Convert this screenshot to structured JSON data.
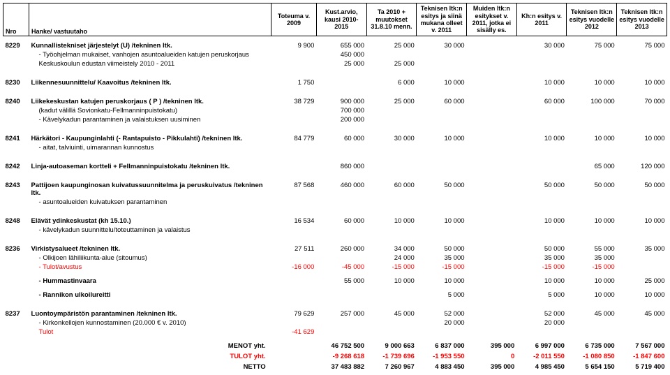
{
  "colors": {
    "neg": "#ff0000",
    "text": "#000000",
    "border": "#000000",
    "bg": "#ffffff"
  },
  "headers": {
    "nro": "Nro",
    "hanke": "Hanke/ vastuutaho",
    "h0": "Toteuma v. 2009",
    "h1": "Kust.arvio, kausi 2010-2015",
    "h2": "Ta 2010 + muutokset 31.8.10 menn.",
    "h3": "Teknisen ltk:n esitys ja siinä mukana olleet v. 2011",
    "h4": "Muiden ltk:n esitykset v. 2011, jotka ei sisälly es.",
    "h5": "Kh:n esitys v. 2011",
    "h6": "Teknisen ltk:n esitys vuodelle 2012",
    "h7": "Teknisen ltk:n esitys vuodelle 2013"
  },
  "rows": [
    {
      "type": "section",
      "nro": "8229",
      "label": "Kunnallistekniset järjestelyt (U) /tekninen ltk.",
      "v": [
        "9 900",
        "655 000",
        "25 000",
        "30 000",
        "",
        "30 000",
        "75 000",
        "75 000"
      ]
    },
    {
      "type": "sub",
      "label": "- Työohjelman mukaiset, vanhojen asuntoalueiden katujen peruskorjaus",
      "v": [
        "",
        "450 000",
        "",
        "",
        "",
        "",
        "",
        ""
      ]
    },
    {
      "type": "sub last",
      "label": "Keskuskoulun edustan viimeistely 2010 - 2011",
      "v": [
        "",
        "25 000",
        "25 000",
        "",
        "",
        "",
        "",
        ""
      ]
    },
    {
      "type": "section last",
      "nro": "8230",
      "label": "Liikennesuunnittelu/ Kaavoitus /tekninen ltk.",
      "v": [
        "1 750",
        "",
        "6 000",
        "10 000",
        "",
        "10 000",
        "10 000",
        "10 000"
      ]
    },
    {
      "type": "section",
      "nro": "8240",
      "label": "Liikekeskustan katujen peruskorjaus ( P ) /tekninen ltk.",
      "v": [
        "38 729",
        "900 000",
        "25 000",
        "60 000",
        "",
        "60 000",
        "100 000",
        "70 000"
      ]
    },
    {
      "type": "sub",
      "label": "(kadut välillä Sovionkatu-Fellmanninpuistokatu)",
      "v": [
        "",
        "700 000",
        "",
        "",
        "",
        "",
        "",
        ""
      ]
    },
    {
      "type": "sub last",
      "label": "- Kävelykadun parantaminen ja valaistuksen uusiminen",
      "v": [
        "",
        "200 000",
        "",
        "",
        "",
        "",
        "",
        ""
      ]
    },
    {
      "type": "section",
      "nro": "8241",
      "label": "Härkätori - Kaupunginlahti (- Rantapuisto - Pikkulahti) /tekninen ltk.",
      "v": [
        "84 779",
        "60 000",
        "30 000",
        "10 000",
        "",
        "10 000",
        "10 000",
        "10 000"
      ]
    },
    {
      "type": "sub last",
      "label": "- aitat, talviuinti, uimarannan kunnostus",
      "v": [
        "",
        "",
        "",
        "",
        "",
        "",
        "",
        ""
      ]
    },
    {
      "type": "section last",
      "nro": "8242",
      "label": "Linja-autoaseman kortteli + Fellmanninpuistokatu /tekninen ltk.",
      "v": [
        "",
        "860 000",
        "",
        "",
        "",
        "",
        "65 000",
        "120 000"
      ]
    },
    {
      "type": "section",
      "nro": "8243",
      "label": "Pattijoen kaupunginosan kuivatussuunnitelma ja peruskuivatus /tekninen ltk.",
      "v": [
        "87 568",
        "460 000",
        "60 000",
        "50 000",
        "",
        "50 000",
        "50 000",
        "50 000"
      ]
    },
    {
      "type": "sub last",
      "label": "- asuntoalueiden kuivatuksen parantaminen",
      "v": [
        "",
        "",
        "",
        "",
        "",
        "",
        "",
        ""
      ]
    },
    {
      "type": "section",
      "nro": "8248",
      "label": "Elävät ydinkeskustat (kh 15.10.)",
      "v": [
        "16 534",
        "60 000",
        "10 000",
        "10 000",
        "",
        "10 000",
        "10 000",
        "10 000"
      ]
    },
    {
      "type": "sub last",
      "label": "- kävelykadun suunnittelu/toteuttaminen ja valaistus",
      "v": [
        "",
        "",
        "",
        "",
        "",
        "",
        "",
        ""
      ]
    },
    {
      "type": "section",
      "nro": "8236",
      "label": "Virkistysalueet /tekninen ltk.",
      "v": [
        "27 511",
        "260 000",
        "34 000",
        "50 000",
        "",
        "50 000",
        "55 000",
        "35 000"
      ]
    },
    {
      "type": "sub",
      "label": "- Olkijoen lähiliikunta-alue (sitoumus)",
      "v": [
        "",
        "",
        "24 000",
        "35 000",
        "",
        "35 000",
        "35 000",
        ""
      ]
    },
    {
      "type": "sub red",
      "label": "- Tulot/avustus",
      "v": [
        "-16 000",
        "-45 000",
        "-15 000",
        "-15 000",
        "",
        "-15 000",
        "-15 000",
        ""
      ]
    },
    {
      "type": "sub spaced",
      "label": "- Hummastinvaara",
      "v": [
        "",
        "55 000",
        "10 000",
        "10 000",
        "",
        "10 000",
        "10 000",
        "25 000"
      ]
    },
    {
      "type": "sub spaced last",
      "label": "- Rannikon ulkoilureitti",
      "v": [
        "",
        "",
        "",
        "5 000",
        "",
        "5 000",
        "10 000",
        "10 000"
      ]
    },
    {
      "type": "section",
      "nro": "8237",
      "label": "Luontoympäristön parantaminen /tekninen ltk.",
      "v": [
        "79 629",
        "257 000",
        "45 000",
        "52 000",
        "",
        "52 000",
        "45 000",
        "45 000"
      ]
    },
    {
      "type": "sub",
      "label": "- Kirkonkellojen kunnostaminen (20.000 € v. 2010)",
      "v": [
        "",
        "",
        "",
        "20 000",
        "",
        "20 000",
        "",
        ""
      ]
    },
    {
      "type": "sub red",
      "label": "Tulot",
      "v": [
        "-41 629",
        "",
        "",
        "",
        "",
        "",
        "",
        ""
      ]
    }
  ],
  "summary": [
    {
      "label": "MENOT yht.",
      "cls": "",
      "v": [
        "",
        "46 752 500",
        "9 000 663",
        "6 837 000",
        "395 000",
        "6 997 000",
        "6 735 000",
        "7 567 000"
      ]
    },
    {
      "label": "TULOT yht.",
      "cls": "red",
      "v": [
        "",
        "-9 268 618",
        "-1 739 696",
        "-1 953 550",
        "0",
        "-2 011 550",
        "-1 080 850",
        "-1 847 600"
      ]
    },
    {
      "label": "NETTO",
      "cls": "",
      "v": [
        "",
        "37 483 882",
        "7 260 967",
        "4 883 450",
        "395 000",
        "4 985 450",
        "5 654 150",
        "5 719 400"
      ]
    }
  ]
}
